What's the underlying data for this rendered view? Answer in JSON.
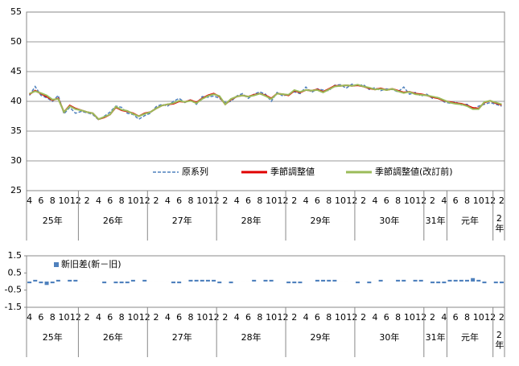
{
  "chart_data": [
    {
      "type": "line",
      "categories": [
        "4",
        null,
        "6",
        null,
        "8",
        null,
        "10",
        null,
        "12",
        null,
        "2",
        null,
        "4",
        null,
        "6",
        null,
        "8",
        null,
        "10",
        null,
        "12",
        null,
        "2",
        null,
        "4",
        null,
        "6",
        null,
        "8",
        null,
        "10",
        null,
        "12",
        null,
        "2",
        null,
        "4",
        null,
        "6",
        null,
        "8",
        null,
        "10",
        null,
        "12",
        null,
        "2",
        null,
        "4",
        null,
        "6",
        null,
        "8",
        null,
        "10",
        null,
        "12",
        null,
        "2",
        null,
        "4",
        null,
        "6",
        null,
        "8",
        null,
        "10",
        null,
        "12",
        null,
        "2",
        null,
        "4",
        null,
        "6",
        null,
        "8",
        null,
        "10",
        null,
        "12",
        null,
        "2"
      ],
      "category_groups": [
        "25年",
        null,
        null,
        null,
        null,
        null,
        null,
        null,
        null,
        "26年",
        null,
        null,
        null,
        null,
        null,
        null,
        null,
        null,
        null,
        null,
        null,
        "27年",
        null,
        null,
        null,
        null,
        null,
        null,
        null,
        null,
        null,
        null,
        null,
        "28年",
        null,
        null,
        null,
        null,
        null,
        null,
        null,
        null,
        null,
        null,
        null,
        "29年",
        null,
        null,
        null,
        null,
        null,
        null,
        null,
        null,
        null,
        null,
        null,
        "30年",
        null,
        null,
        null,
        null,
        null,
        null,
        null,
        null,
        null,
        null,
        null,
        "31年",
        null,
        null,
        null,
        "元年",
        null,
        null,
        null,
        null,
        null,
        null,
        null,
        "2年",
        null
      ],
      "series": [
        {
          "name": "原系列",
          "color": "#4f81bd",
          "dash": true,
          "values": [
            41.0,
            42.5,
            41.0,
            40.6,
            40.0,
            41.0,
            37.9,
            39.0,
            38.0,
            38.3,
            38.1,
            37.8,
            36.9,
            37.5,
            38.2,
            39.2,
            39.0,
            38.0,
            37.8,
            37.0,
            37.6,
            38.0,
            39.1,
            39.5,
            39.2,
            40.0,
            40.5,
            39.8,
            40.3,
            39.5,
            40.8,
            40.7,
            40.9,
            40.5,
            39.8,
            40.0,
            40.9,
            41.3,
            40.5,
            41.2,
            41.6,
            41.2,
            40.0,
            41.5,
            40.9,
            41.2,
            41.6,
            41.3,
            42.4,
            41.5,
            42.1,
            41.9,
            41.8,
            42.7,
            42.8,
            42.2,
            42.9,
            42.6,
            42.8,
            42.0,
            42.3,
            41.8,
            42.1,
            42.0,
            41.6,
            42.4,
            41.2,
            41.5,
            40.9,
            41.2,
            40.5,
            40.7,
            39.9,
            39.7,
            39.9,
            39.4,
            39.5,
            38.7,
            39.2,
            39.5,
            39.8,
            39.5,
            39.2
          ]
        },
        {
          "name": "季節調整値",
          "color": "#e00000",
          "dash": false,
          "values": [
            41.2,
            41.8,
            41.3,
            40.8,
            40.2,
            40.5,
            38.2,
            39.3,
            38.8,
            38.5,
            38.2,
            38.0,
            37.0,
            37.3,
            37.8,
            39.0,
            38.5,
            38.3,
            38.0,
            37.5,
            38.0,
            38.2,
            38.8,
            39.3,
            39.5,
            39.6,
            40.0,
            39.9,
            40.2,
            39.8,
            40.5,
            41.0,
            41.3,
            40.8,
            39.5,
            40.3,
            40.8,
            41.0,
            40.8,
            41.1,
            41.3,
            41.0,
            40.5,
            41.3,
            41.2,
            41.0,
            41.8,
            41.5,
            41.9,
            41.8,
            42.0,
            41.6,
            42.1,
            42.6,
            42.6,
            42.7,
            42.6,
            42.7,
            42.5,
            42.2,
            42.0,
            42.2,
            41.9,
            42.1,
            41.8,
            41.5,
            41.6,
            41.3,
            41.2,
            41.0,
            40.7,
            40.5,
            40.1,
            39.9,
            39.7,
            39.6,
            39.3,
            38.9,
            38.8,
            39.8,
            40.1,
            39.7,
            39.4
          ]
        },
        {
          "name": "季節調整値(改訂前)",
          "color": "#9bbb59",
          "dash": false,
          "values": [
            41.3,
            41.7,
            41.4,
            41.0,
            40.3,
            40.4,
            38.2,
            39.2,
            38.7,
            38.5,
            38.2,
            38.0,
            37.0,
            37.4,
            37.8,
            39.1,
            38.6,
            38.4,
            37.9,
            37.5,
            37.9,
            38.2,
            38.8,
            39.3,
            39.5,
            39.7,
            40.1,
            39.9,
            40.1,
            39.7,
            40.4,
            40.9,
            41.2,
            40.9,
            39.5,
            40.4,
            40.8,
            41.0,
            40.8,
            41.0,
            41.3,
            40.9,
            40.4,
            41.3,
            41.2,
            41.1,
            41.9,
            41.6,
            41.9,
            41.8,
            41.9,
            41.5,
            42.0,
            42.5,
            42.6,
            42.7,
            42.6,
            42.8,
            42.5,
            42.3,
            42.0,
            42.1,
            41.9,
            42.1,
            41.7,
            41.4,
            41.6,
            41.2,
            41.1,
            41.0,
            40.8,
            40.6,
            40.2,
            39.8,
            39.6,
            39.5,
            39.2,
            38.7,
            38.7,
            39.9,
            40.1,
            39.8,
            39.5
          ]
        }
      ],
      "ylim": [
        25,
        55
      ],
      "yticks": [
        25,
        30,
        35,
        40,
        45,
        50,
        55
      ],
      "grid": true,
      "legend": "bottom"
    },
    {
      "type": "bar",
      "categories": [
        "4",
        null,
        "6",
        null,
        "8",
        null,
        "10",
        null,
        "12",
        null,
        "2",
        null,
        "4",
        null,
        "6",
        null,
        "8",
        null,
        "10",
        null,
        "12",
        null,
        "2",
        null,
        "4",
        null,
        "6",
        null,
        "8",
        null,
        "10",
        null,
        "12",
        null,
        "2",
        null,
        "4",
        null,
        "6",
        null,
        "8",
        null,
        "10",
        null,
        "12",
        null,
        "2",
        null,
        "4",
        null,
        "6",
        null,
        "8",
        null,
        "10",
        null,
        "12",
        null,
        "2",
        null,
        "4",
        null,
        "6",
        null,
        "8",
        null,
        "10",
        null,
        "12",
        null,
        "2",
        null,
        "4",
        null,
        "6",
        null,
        "8",
        null,
        "10",
        null,
        "12",
        null,
        "2"
      ],
      "category_groups": [
        "25年",
        null,
        null,
        null,
        null,
        null,
        null,
        null,
        null,
        "26年",
        null,
        null,
        null,
        null,
        null,
        null,
        null,
        null,
        null,
        null,
        null,
        "27年",
        null,
        null,
        null,
        null,
        null,
        null,
        null,
        null,
        null,
        null,
        null,
        "28年",
        null,
        null,
        null,
        null,
        null,
        null,
        null,
        null,
        null,
        null,
        null,
        "29年",
        null,
        null,
        null,
        null,
        null,
        null,
        null,
        null,
        null,
        null,
        null,
        "30年",
        null,
        null,
        null,
        null,
        null,
        null,
        null,
        null,
        null,
        null,
        null,
        "31年",
        null,
        null,
        null,
        "元年",
        null,
        null,
        null,
        null,
        null,
        null,
        null,
        "2年",
        null
      ],
      "series": [
        {
          "name": "新旧差(新－旧)",
          "color": "#4f81bd",
          "values": [
            -0.1,
            0.1,
            -0.1,
            -0.2,
            -0.1,
            0.1,
            0,
            0.1,
            0.1,
            0,
            0,
            0,
            0,
            -0.1,
            0,
            -0.1,
            -0.1,
            -0.1,
            0.1,
            0,
            0.1,
            0,
            0,
            0,
            0,
            -0.1,
            -0.1,
            0,
            0.1,
            0.1,
            0.1,
            0.1,
            0.1,
            -0.1,
            0,
            -0.1,
            0,
            0,
            0,
            0.1,
            0,
            0.1,
            0.1,
            0,
            0,
            -0.1,
            -0.1,
            -0.1,
            0,
            0,
            0.1,
            0.1,
            0.1,
            0.1,
            0,
            0,
            0,
            -0.1,
            0,
            -0.1,
            0,
            0.1,
            0,
            0,
            0.1,
            0.1,
            0,
            0.1,
            0.1,
            0,
            -0.1,
            -0.1,
            -0.1,
            0.1,
            0.1,
            0.1,
            0.1,
            0.2,
            0.1,
            -0.1,
            0,
            -0.1,
            -0.1
          ]
        }
      ],
      "ylim": [
        -1.5,
        1.5
      ],
      "yticks": [
        -1.5,
        -0.5,
        0.5,
        1.5
      ],
      "grid": false,
      "legend": "top-left"
    }
  ]
}
